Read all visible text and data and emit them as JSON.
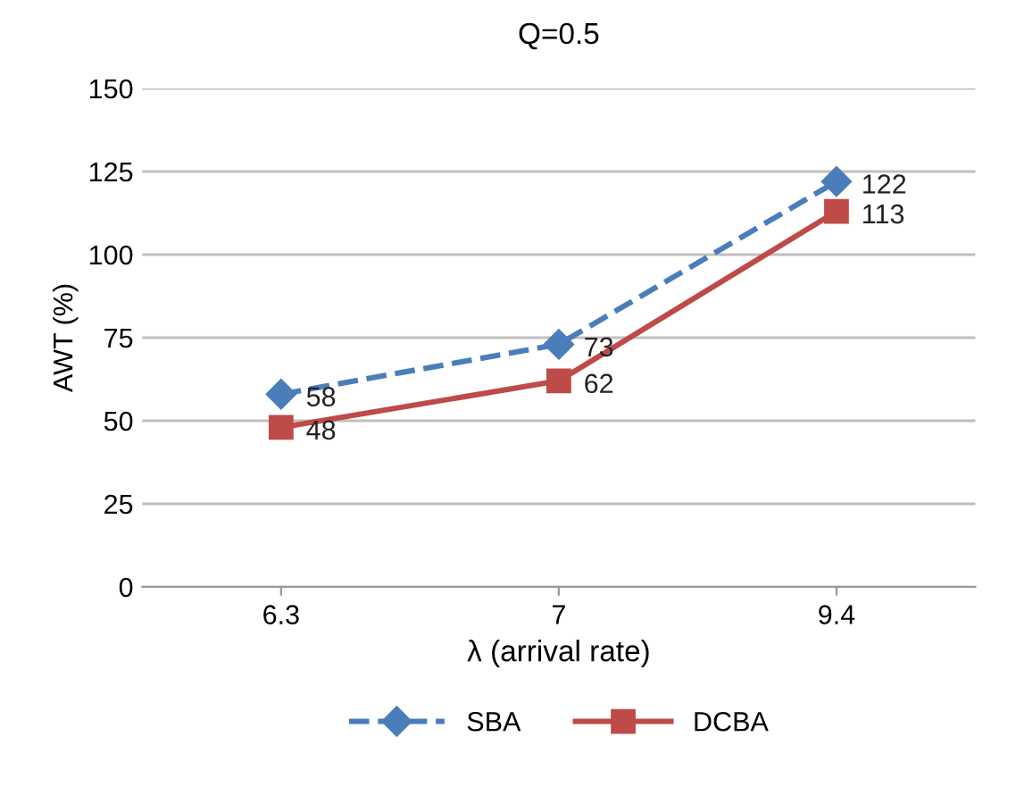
{
  "chart_data": {
    "type": "line",
    "title": "Q=0.5",
    "xlabel": "λ (arrival rate)",
    "ylabel": "AWT (%)",
    "categories": [
      "6.3",
      "7",
      "9.4"
    ],
    "series": [
      {
        "name": "SBA",
        "color": "#4a7ebb",
        "values": [
          58,
          73,
          122
        ],
        "marker": "diamond",
        "line_style": "dashed"
      },
      {
        "name": "DCBA",
        "color": "#be4b48",
        "values": [
          48,
          62,
          113
        ],
        "marker": "square",
        "line_style": "solid"
      }
    ],
    "ylim": [
      0,
      150
    ],
    "yticks": [
      0,
      25,
      50,
      75,
      100,
      125,
      150
    ],
    "grid": "y",
    "legend": "bottom",
    "data_labels": true
  }
}
